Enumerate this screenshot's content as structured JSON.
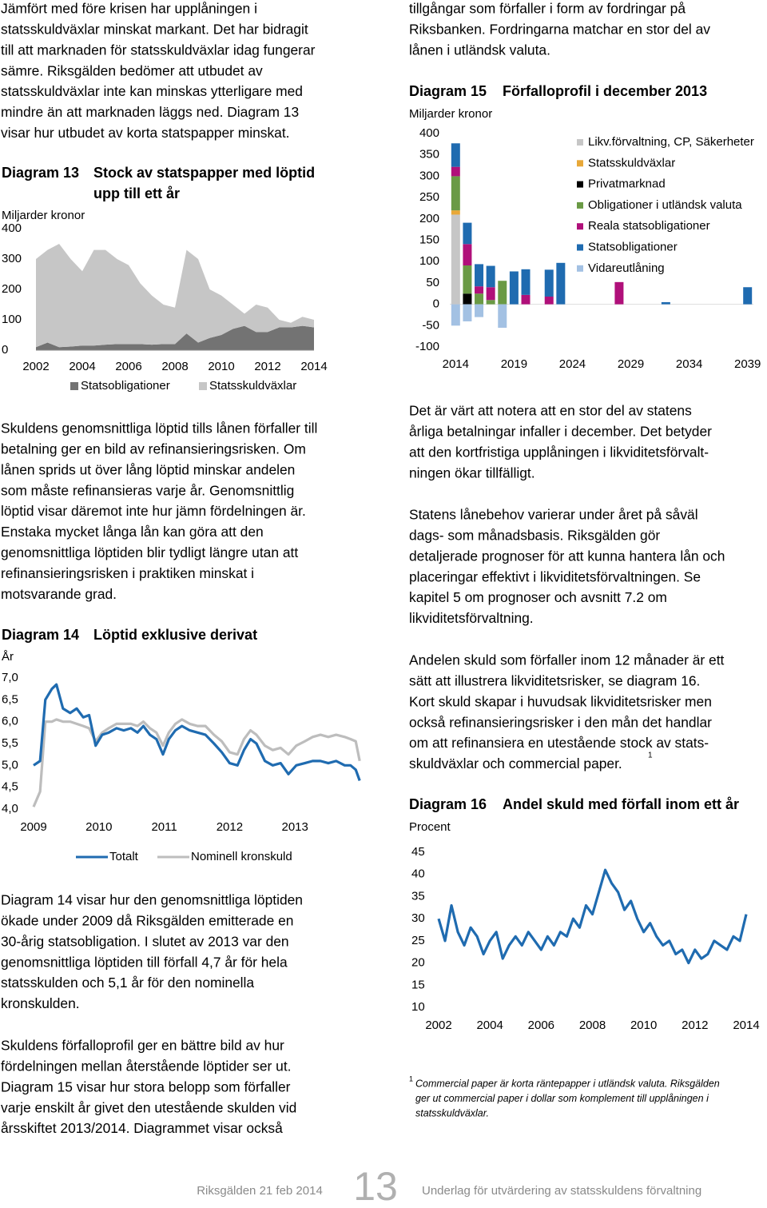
{
  "left": {
    "paragraphs": [
      [
        "Jämfört med före krisen har upplåningen i",
        "statsskuldväxlar minskat markant. Det har bidragit",
        "till att marknaden för statsskuldväxlar idag fungerar",
        "sämre. Riksgälden bedömer att utbudet av",
        "statsskuldväxlar inte kan minskas ytterligare med",
        "mindre än att marknaden läggs ned. Diagram 13",
        "visar hur utbudet av korta statspapper minskat."
      ],
      [
        "Skuldens genomsnittliga löptid tills lånen förfaller till",
        "betalning ger en bild av refinansieringsrisken. Om",
        "lånen sprids ut över lång löptid minskar andelen",
        "som måste refinansieras varje år. Genomsnittlig",
        "löptid visar däremot inte hur jämn fördelningen är.",
        "Enstaka mycket långa lån kan göra att den",
        "genomsnittliga löptiden blir tydligt längre utan att",
        "refinansieringsrisken i praktiken minskat i",
        "motsvarande grad."
      ],
      [
        "Diagram 14 visar hur den genomsnittliga löptiden",
        "ökade under 2009 då Riksgälden emitterade en",
        "30-årig statsobligation. I slutet av 2013 var den",
        "genomsnittliga löptiden till förfall 4,7 år för hela",
        "statsskulden och 5,1 år för den nominella",
        "kronskulden."
      ],
      [
        "Skuldens förfalloprofil ger en bättre bild av hur",
        "fördelningen mellan återstående löptider ser ut.",
        "Diagram 15 visar hur stora belopp som förfaller",
        "varje enskilt år givet den utestående skulden vid",
        "årsskiftet 2013/2014. Diagrammet visar också"
      ]
    ]
  },
  "right": {
    "paragraphs": [
      [
        "tillgångar som förfaller i form av fordringar på",
        "Riksbanken. Fordringarna matchar en stor del av",
        "lånen i utländsk valuta."
      ],
      [
        "Det är värt att notera att en stor del av statens",
        "årliga betalningar infaller i december. Det betyder",
        "att den kortfristiga upplåningen i likviditetsförvalt-",
        "ningen ökar tillfälligt."
      ],
      [
        "Statens lånebehov varierar under året på såväl",
        "dags- som månadsbasis. Riksgälden gör",
        "detaljerade prognoser för att kunna hantera lån och",
        "placeringar effektivt i likviditetsförvaltningen. Se",
        "kapitel 5 om prognoser och avsnitt 7.2 om",
        "likviditetsförvaltning."
      ],
      [
        "Andelen skuld som förfaller inom 12 månader är ett",
        "sätt att illustrera likviditetsrisker, se diagram 16.",
        "Kort skuld skapar i huvudsak likviditetsrisker men",
        "också refinansieringsrisker i den mån det handlar",
        "om att refinansiera en utestående stock av stats-",
        "skuldväxlar och commercial paper."
      ]
    ],
    "note_ref": "1"
  },
  "footnote": {
    "mark": "1",
    "lines": [
      "Commercial paper är korta räntepapper i utländsk valuta. Riksgälden",
      "ger ut commercial paper i dollar som komplement till upplåningen i",
      "statsskuldväxlar."
    ]
  },
  "footer": {
    "left": "Riksgälden 21 feb 2014",
    "page": "13",
    "right": "Underlag för utvärdering av statsskuldens förvaltning"
  },
  "chart_data": [
    {
      "type": "area",
      "label": "Diagram 13",
      "title": [
        "Stock av statspapper med löptid",
        "upp till ett år"
      ],
      "unit": "Miljarder kronor",
      "x": [
        2002,
        2002.5,
        2003,
        2003.5,
        2004,
        2004.5,
        2005,
        2005.5,
        2006,
        2006.5,
        2007,
        2007.5,
        2008,
        2008.5,
        2009,
        2009.5,
        2010,
        2010.5,
        2011,
        2011.5,
        2012,
        2012.5,
        2013,
        2013.5,
        2014
      ],
      "series": [
        {
          "name": "Statsobligationer",
          "color": "#737373",
          "values": [
            10,
            25,
            10,
            12,
            15,
            15,
            18,
            20,
            20,
            20,
            18,
            20,
            20,
            55,
            25,
            40,
            50,
            70,
            80,
            60,
            60,
            75,
            75,
            80,
            75
          ]
        },
        {
          "name": "Statsskuldväxlar",
          "color": "#c6c6c6",
          "values": [
            290,
            305,
            340,
            288,
            245,
            315,
            312,
            280,
            260,
            200,
            162,
            130,
            120,
            275,
            275,
            160,
            130,
            80,
            40,
            90,
            80,
            25,
            15,
            30,
            25
          ]
        }
      ],
      "xlim": [
        2002,
        2014
      ],
      "xticks": [
        2002,
        2004,
        2006,
        2008,
        2010,
        2012,
        2014
      ],
      "ylim": [
        0,
        400
      ],
      "yticks": [
        0,
        100,
        200,
        300,
        400
      ],
      "stacked": true
    },
    {
      "type": "line",
      "label": "Diagram 14",
      "title": "Löptid exklusive derivat",
      "unit": "År",
      "x": [
        2009,
        2009.1,
        2009.18,
        2009.28,
        2009.35,
        2009.45,
        2009.56,
        2009.66,
        2009.76,
        2009.85,
        2009.95,
        2010.05,
        2010.15,
        2010.27,
        2010.38,
        2010.49,
        2010.59,
        2010.68,
        2010.78,
        2010.88,
        2010.98,
        2011.07,
        2011.17,
        2011.27,
        2011.39,
        2011.51,
        2011.63,
        2011.76,
        2011.88,
        2012,
        2012.12,
        2012.22,
        2012.32,
        2012.41,
        2012.54,
        2012.66,
        2012.78,
        2012.9,
        2013.02,
        2013.15,
        2013.27,
        2013.39,
        2013.51,
        2013.63,
        2013.76,
        2013.85,
        2013.93,
        2013.99
      ],
      "series": [
        {
          "name": "Totalt",
          "color": "#1f6bb0",
          "values": [
            5.0,
            5.1,
            6.5,
            6.75,
            6.85,
            6.3,
            6.2,
            6.3,
            6.1,
            6.15,
            5.45,
            5.7,
            5.75,
            5.85,
            5.8,
            5.85,
            5.75,
            5.9,
            5.7,
            5.6,
            5.25,
            5.6,
            5.8,
            5.9,
            5.8,
            5.75,
            5.7,
            5.5,
            5.3,
            5.05,
            5.0,
            5.35,
            5.6,
            5.5,
            5.1,
            5.0,
            5.05,
            4.8,
            5.0,
            5.05,
            5.1,
            5.1,
            5.05,
            5.1,
            5.0,
            5.0,
            4.9,
            4.65
          ]
        },
        {
          "name": "Nominell kronskuld",
          "color": "#bdbdbd",
          "values": [
            4.05,
            4.4,
            6.0,
            6.0,
            6.05,
            6.0,
            6.0,
            5.95,
            5.9,
            5.85,
            5.55,
            5.75,
            5.85,
            5.95,
            5.95,
            5.95,
            5.9,
            6.0,
            5.85,
            5.75,
            5.45,
            5.75,
            5.95,
            6.05,
            5.95,
            5.9,
            5.9,
            5.7,
            5.55,
            5.3,
            5.25,
            5.6,
            5.8,
            5.7,
            5.45,
            5.35,
            5.4,
            5.25,
            5.45,
            5.55,
            5.65,
            5.7,
            5.65,
            5.7,
            5.65,
            5.6,
            5.55,
            5.1
          ]
        }
      ],
      "xlim": [
        2009,
        2014
      ],
      "xticks": [
        2009,
        2010,
        2011,
        2012,
        2013
      ],
      "ylim": [
        4,
        7
      ],
      "yticks": [
        {
          "value": 4,
          "label": "4,0"
        },
        {
          "value": 4.5,
          "label": "4,5"
        },
        {
          "value": 5,
          "label": "5,0"
        },
        {
          "value": 5.5,
          "label": "5,5"
        },
        {
          "value": 6,
          "label": "6,0"
        },
        {
          "value": 6.5,
          "label": "6,5"
        },
        {
          "value": 7,
          "label": "7,0"
        }
      ]
    },
    {
      "type": "bar",
      "label": "Diagram 15",
      "title": "Förfalloprofil i december 2013",
      "unit": "Miljarder kronor",
      "stacked": true,
      "x": [
        2014,
        2015,
        2016,
        2017,
        2018,
        2019,
        2020,
        2021,
        2022,
        2023,
        2024,
        2025,
        2026,
        2027,
        2028,
        2029,
        2030,
        2031,
        2032,
        2033,
        2034,
        2035,
        2036,
        2037,
        2038,
        2039
      ],
      "series": [
        {
          "name": "Likv.förvaltning, CP, Säkerheter",
          "color": "#c6c6c6",
          "values": [
            210,
            0,
            0,
            0,
            0,
            0,
            0,
            0,
            0,
            0,
            0,
            0,
            0,
            0,
            0,
            0,
            0,
            0,
            0,
            0,
            0,
            0,
            0,
            0,
            0,
            0
          ]
        },
        {
          "name": "Statsskuldväxlar",
          "color": "#e8a838",
          "values": [
            10,
            0,
            0,
            0,
            0,
            0,
            0,
            0,
            0,
            0,
            0,
            0,
            0,
            0,
            0,
            0,
            0,
            0,
            0,
            0,
            0,
            0,
            0,
            0,
            0,
            0
          ]
        },
        {
          "name": "Privatmarknad",
          "color": "#000000",
          "values": [
            0,
            25,
            0,
            0,
            0,
            0,
            0,
            0,
            0,
            0,
            0,
            0,
            0,
            0,
            0,
            0,
            0,
            0,
            0,
            0,
            0,
            0,
            0,
            0,
            0,
            0
          ]
        },
        {
          "name": "Obligationer i utländsk valuta",
          "color": "#6a9a45",
          "values": [
            80,
            66,
            25,
            10,
            55,
            0,
            0,
            0,
            0,
            0,
            0,
            0,
            0,
            0,
            0,
            0,
            0,
            0,
            0,
            0,
            0,
            0,
            0,
            0,
            0,
            0
          ]
        },
        {
          "name": "Reala statsobligationer",
          "color": "#b0107a",
          "values": [
            22,
            50,
            17,
            30,
            0,
            0,
            22,
            0,
            18,
            0,
            0,
            0,
            0,
            0,
            52,
            0,
            0,
            0,
            0,
            0,
            0,
            0,
            0,
            0,
            0,
            0
          ]
        },
        {
          "name": "Statsobligationer",
          "color": "#1f6bb0",
          "values": [
            55,
            50,
            52,
            50,
            0,
            77,
            60,
            0,
            63,
            97,
            0,
            0,
            0,
            0,
            0,
            0,
            0,
            0,
            5,
            0,
            0,
            0,
            0,
            0,
            0,
            40
          ]
        },
        {
          "name": "Vidareutlåning",
          "color": "#a3c1e3",
          "values": [
            -50,
            -40,
            -30,
            0,
            -55,
            0,
            0,
            0,
            0,
            0,
            0,
            0,
            0,
            0,
            0,
            0,
            0,
            0,
            0,
            0,
            0,
            0,
            0,
            0,
            0,
            0
          ]
        }
      ],
      "xlim": [
        2013.5,
        2039.5
      ],
      "xticks": [
        2014,
        2019,
        2024,
        2029,
        2034,
        2039
      ],
      "ylim": [
        -100,
        400
      ],
      "yticks": [
        -100,
        -50,
        0,
        50,
        100,
        150,
        200,
        250,
        300,
        350,
        400
      ]
    },
    {
      "type": "line",
      "label": "Diagram 16",
      "title": "Andel skuld med förfall inom ett år",
      "unit": "Procent",
      "x": [
        2002,
        2002.25,
        2002.5,
        2002.75,
        2003,
        2003.25,
        2003.5,
        2003.75,
        2004,
        2004.25,
        2004.5,
        2004.75,
        2005,
        2005.25,
        2005.5,
        2005.75,
        2006,
        2006.25,
        2006.5,
        2006.75,
        2007,
        2007.25,
        2007.5,
        2007.75,
        2008,
        2008.25,
        2008.5,
        2008.75,
        2009,
        2009.25,
        2009.5,
        2009.75,
        2010,
        2010.25,
        2010.5,
        2010.75,
        2011,
        2011.25,
        2011.5,
        2011.75,
        2012,
        2012.25,
        2012.5,
        2012.75,
        2013,
        2013.25,
        2013.5,
        2013.75,
        2014
      ],
      "series": [
        {
          "name": null,
          "color": "#1f6bb0",
          "values": [
            30,
            25,
            33,
            27,
            24,
            28,
            26,
            22,
            25,
            27,
            21,
            24,
            26,
            24,
            27,
            25,
            23,
            26,
            24,
            27,
            26,
            30,
            28,
            33,
            31,
            36,
            41,
            38,
            36,
            32,
            34,
            30,
            27,
            29,
            26,
            24,
            25,
            22,
            23,
            20,
            23,
            21,
            22,
            25,
            24,
            23,
            26,
            25,
            31
          ]
        }
      ],
      "xlim": [
        2002,
        2014
      ],
      "xticks": [
        2002,
        2004,
        2006,
        2008,
        2010,
        2012,
        2014
      ],
      "ylim": [
        10,
        45
      ],
      "yticks": [
        10,
        15,
        20,
        25,
        30,
        35,
        40,
        45
      ]
    }
  ]
}
